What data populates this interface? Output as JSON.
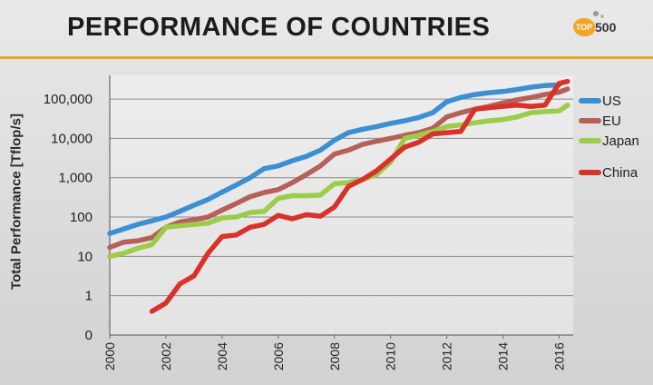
{
  "slide": {
    "title": "PERFORMANCE OF COUNTRIES",
    "logo_text": "TOP",
    "logo_number": "500",
    "accent_color": "#e5a92b"
  },
  "chart_data": {
    "type": "line",
    "title": "",
    "xlabel": "",
    "ylabel": "Total Performance  [Tflop/s]",
    "yscale": "log",
    "ylim": [
      0.1,
      400000
    ],
    "xlim": [
      2000,
      2016.5
    ],
    "y_tick_values": [
      0.1,
      1,
      10,
      100,
      1000,
      10000,
      100000
    ],
    "y_tick_labels": [
      "0",
      "1",
      "10",
      "100",
      "1,000",
      "10,000",
      "100,000"
    ],
    "x_tick_labels": [
      "2000",
      "2002",
      "2004",
      "2006",
      "2008",
      "2010",
      "2012",
      "2014",
      "2016"
    ],
    "grid": "horizontal",
    "legend_position": "right",
    "series": [
      {
        "name": "US",
        "color": "#3c8fd1",
        "x": [
          2000.0,
          2000.5,
          2001.0,
          2001.5,
          2002.0,
          2002.5,
          2003.0,
          2003.5,
          2004.0,
          2004.5,
          2005.0,
          2005.5,
          2006.0,
          2006.5,
          2007.0,
          2007.5,
          2008.0,
          2008.5,
          2009.0,
          2009.5,
          2010.0,
          2010.5,
          2011.0,
          2011.5,
          2012.0,
          2012.5,
          2013.0,
          2013.5,
          2014.0,
          2014.5,
          2015.0,
          2015.5,
          2016.0
        ],
        "y": [
          38,
          50,
          65,
          80,
          100,
          140,
          200,
          280,
          430,
          650,
          1000,
          1700,
          2000,
          2700,
          3500,
          5000,
          9000,
          14000,
          17000,
          20000,
          24000,
          28000,
          34000,
          45000,
          85000,
          110000,
          130000,
          145000,
          155000,
          175000,
          200000,
          220000,
          230000
        ]
      },
      {
        "name": "EU",
        "color": "#b5615a",
        "x": [
          2000.0,
          2000.5,
          2001.0,
          2001.5,
          2002.0,
          2002.5,
          2003.0,
          2003.5,
          2004.0,
          2004.5,
          2005.0,
          2005.5,
          2006.0,
          2006.5,
          2007.0,
          2007.5,
          2008.0,
          2008.5,
          2009.0,
          2009.5,
          2010.0,
          2010.5,
          2011.0,
          2011.5,
          2012.0,
          2012.5,
          2013.0,
          2013.5,
          2014.0,
          2014.5,
          2015.0,
          2015.5,
          2016.0,
          2016.3
        ],
        "y": [
          17,
          23,
          25,
          30,
          55,
          75,
          85,
          100,
          150,
          220,
          330,
          420,
          500,
          750,
          1200,
          2000,
          4000,
          5000,
          7000,
          8500,
          10000,
          12000,
          14000,
          18000,
          35000,
          45000,
          55000,
          65000,
          80000,
          95000,
          110000,
          130000,
          150000,
          180000
        ]
      },
      {
        "name": "Japan",
        "color": "#9ccd4a",
        "x": [
          2000.0,
          2000.5,
          2001.0,
          2001.5,
          2002.0,
          2002.5,
          2003.0,
          2003.5,
          2004.0,
          2004.5,
          2005.0,
          2005.5,
          2006.0,
          2006.5,
          2007.0,
          2007.5,
          2008.0,
          2008.5,
          2009.0,
          2009.5,
          2010.0,
          2010.5,
          2011.0,
          2011.5,
          2012.0,
          2012.5,
          2013.0,
          2013.5,
          2014.0,
          2014.5,
          2015.0,
          2015.5,
          2016.0,
          2016.3
        ],
        "y": [
          10,
          12,
          16,
          20,
          55,
          60,
          65,
          70,
          95,
          100,
          130,
          140,
          300,
          350,
          350,
          360,
          700,
          750,
          900,
          1200,
          2500,
          10000,
          12000,
          15000,
          20000,
          22000,
          25000,
          28000,
          30000,
          35000,
          45000,
          48000,
          50000,
          70000
        ]
      },
      {
        "name": "China",
        "color": "#d8322b",
        "x": [
          2001.5,
          2002.0,
          2002.5,
          2003.0,
          2003.5,
          2004.0,
          2004.5,
          2005.0,
          2005.5,
          2006.0,
          2006.5,
          2007.0,
          2007.5,
          2008.0,
          2008.5,
          2009.0,
          2009.5,
          2010.0,
          2010.5,
          2011.0,
          2011.5,
          2012.0,
          2012.5,
          2013.0,
          2013.5,
          2014.0,
          2014.5,
          2015.0,
          2015.5,
          2016.0,
          2016.3
        ]
      }
    ]
  }
}
